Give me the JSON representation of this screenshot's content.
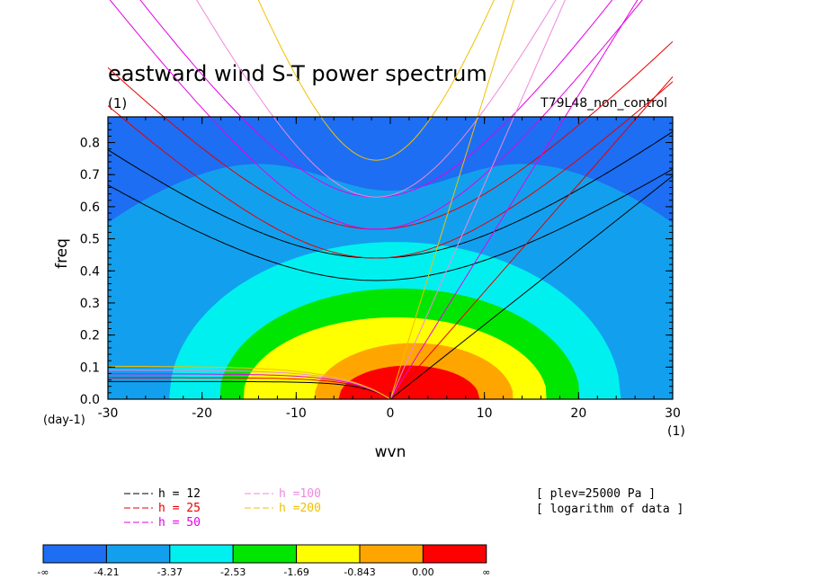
{
  "chart_data": {
    "type": "heatmap",
    "title": "eastward wind S-T power spectrum",
    "subtitle_left": "(1)",
    "subtitle_right": "T79L48_non_control",
    "xlabel": "wvn",
    "ylabel": "freq",
    "x_unit": "(1)",
    "y_unit": "(day-1)",
    "xlim": [
      -30,
      30
    ],
    "ylim": [
      0,
      0.88
    ],
    "x_ticks": [
      -30,
      -20,
      -10,
      0,
      10,
      20,
      30
    ],
    "x_tick_labels": [
      "-30",
      "-20",
      "-10",
      "0",
      "10",
      "20",
      "30"
    ],
    "y_ticks": [
      0,
      0.1,
      0.2,
      0.3,
      0.4,
      0.5,
      0.6,
      0.7,
      0.8
    ],
    "y_tick_labels": [
      "0.0",
      "0.1",
      "0.2",
      "0.3",
      "0.4",
      "0.5",
      "0.6",
      "0.7",
      "0.8"
    ],
    "contour_levels": [
      {
        "label": "-∞",
        "value": null
      },
      {
        "label": "-4.21",
        "value": -4.21
      },
      {
        "label": "-3.37",
        "value": -3.37
      },
      {
        "label": "-2.53",
        "value": -2.53
      },
      {
        "label": "-1.69",
        "value": -1.69
      },
      {
        "label": "-0.843",
        "value": -0.843
      },
      {
        "label": "0.00",
        "value": 0.0
      },
      {
        "label": "∞",
        "value": null
      }
    ],
    "band_colors": [
      "#1d6ef2",
      "#12a0ee",
      "#00f0f0",
      "#00e600",
      "#ffff00",
      "#ffa500",
      "#ff0000"
    ],
    "power_peak": {
      "x": 2,
      "y": 0.0
    },
    "power_bands": [
      {
        "level": -4.21,
        "cx": 0,
        "cy": -0.3,
        "a": 46,
        "b": 1.12,
        "upper_dip": 0.17,
        "dip_x": 0,
        "dip_w": 11
      },
      {
        "level": -3.37,
        "cx": 0.5,
        "cy": 0,
        "a": 24,
        "b": 0.49
      },
      {
        "level": -2.53,
        "cx": 1,
        "cy": 0,
        "a": 19.2,
        "b": 0.345
      },
      {
        "level": -1.69,
        "cx": 0.5,
        "cy": 0,
        "a": 16.2,
        "b": 0.255
      },
      {
        "level": -0.843,
        "cx": 2.5,
        "cy": 0,
        "a": 10.6,
        "b": 0.175
      },
      {
        "level": 0.0,
        "cx": 2,
        "cy": 0,
        "a": 7.5,
        "b": 0.105
      }
    ],
    "dispersion_curves": [
      {
        "name": "h = 12",
        "color": "#000000",
        "eig": [
          0.37,
          0.44
        ],
        "kelvin_slope": 0.0232
      },
      {
        "name": "h = 25",
        "color": "#e60000",
        "eig": [
          0.44,
          0.53
        ],
        "kelvin_slope": 0.0335
      },
      {
        "name": "h = 50",
        "color": "#e600e6",
        "eig": [
          0.53,
          0.63
        ],
        "kelvin_slope": 0.0474
      },
      {
        "name": "h =100",
        "color": "#ee88dd",
        "eig": [
          0.63
        ],
        "kelvin_slope": 0.067
      },
      {
        "name": "h =200",
        "color": "#f0c000",
        "eig": [
          0.745
        ],
        "kelvin_slope": 0.0948
      }
    ],
    "annotations": [
      "[ plev=25000 Pa ]",
      "[ logarithm of data ]"
    ]
  }
}
